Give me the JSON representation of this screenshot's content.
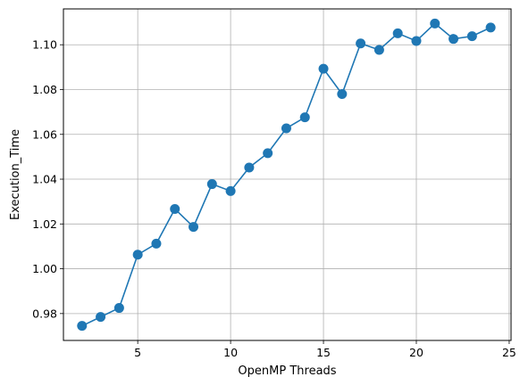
{
  "chart_data": {
    "type": "line",
    "xlabel": "OpenMP Threads",
    "ylabel": "Execution_Time",
    "xlim": [
      1.0,
      25.1
    ],
    "ylim": [
      0.968,
      1.116
    ],
    "xticks": [
      5,
      10,
      15,
      20,
      25
    ],
    "yticks": [
      0.98,
      1.0,
      1.02,
      1.04,
      1.06,
      1.08,
      1.1
    ],
    "xtick_labels": [
      "5",
      "10",
      "15",
      "20",
      "25"
    ],
    "ytick_labels": [
      "0.98",
      "1.00",
      "1.02",
      "1.04",
      "1.06",
      "1.08",
      "1.10"
    ],
    "grid": true,
    "color": "#1f77b4",
    "marker": "circle",
    "series": [
      {
        "x": [
          2,
          3,
          4,
          5,
          6,
          7,
          8,
          9,
          10,
          11,
          12,
          13,
          14,
          15,
          16,
          17,
          18,
          19,
          20,
          21,
          22,
          23,
          24
        ],
        "values": [
          0.9745,
          0.9785,
          0.9825,
          1.0063,
          1.0112,
          1.0267,
          1.0187,
          1.0378,
          1.0347,
          1.0452,
          1.0516,
          1.0627,
          1.0676,
          1.0893,
          1.078,
          1.1006,
          1.0977,
          1.1051,
          1.1017,
          1.1095,
          1.1026,
          1.1038,
          1.1077
        ]
      }
    ]
  }
}
